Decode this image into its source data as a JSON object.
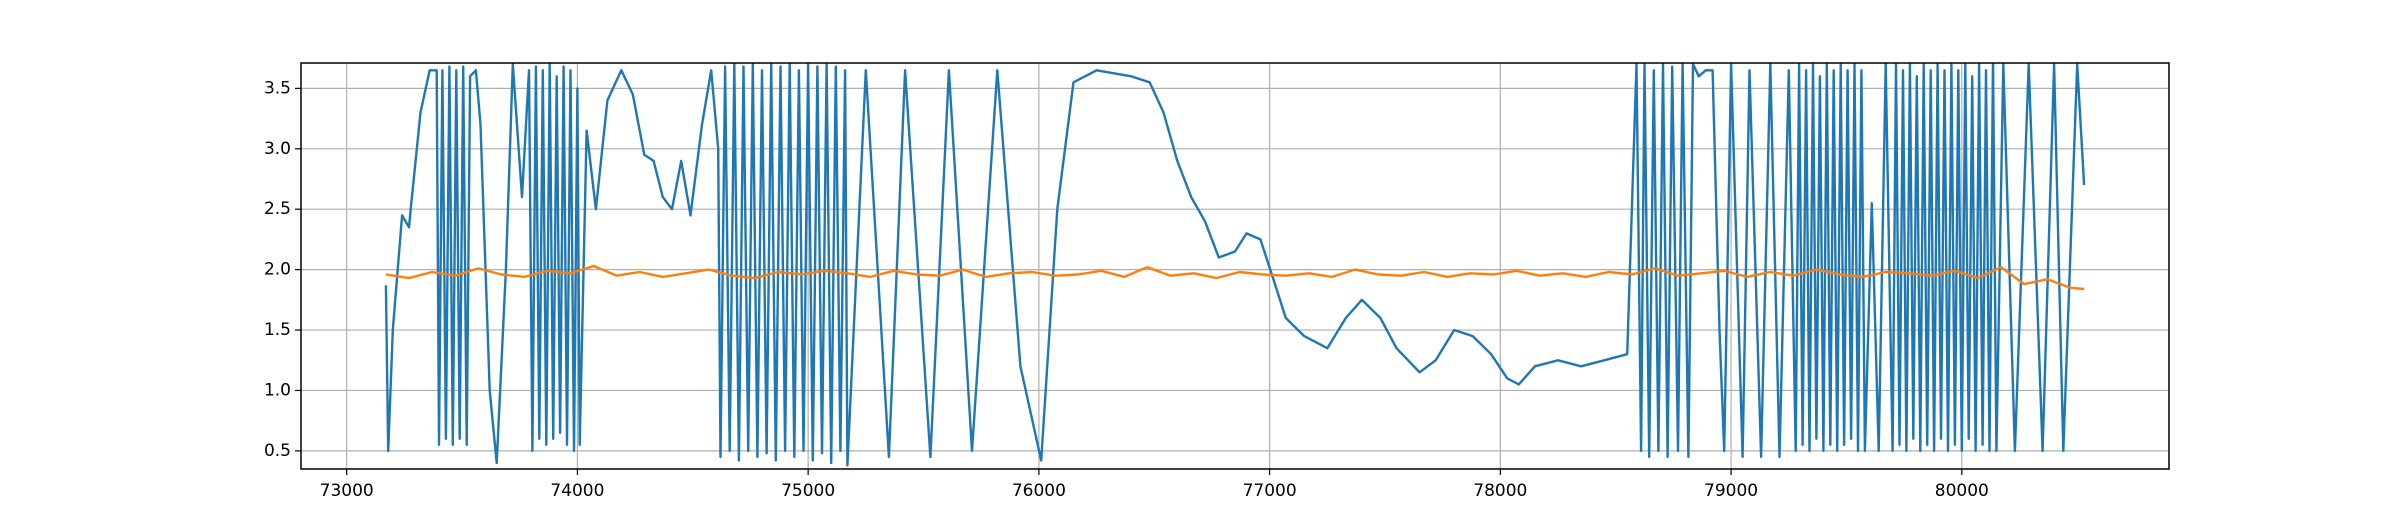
{
  "chart_data": {
    "type": "line",
    "xlim": [
      72802,
      80898
    ],
    "ylim": [
      0.35,
      3.71
    ],
    "xticks": [
      73000,
      74000,
      75000,
      76000,
      77000,
      78000,
      79000,
      80000
    ],
    "yticks": [
      0.5,
      {
        "value": 1.0,
        "label": "1.0"
      },
      1.5,
      {
        "value": 2.0,
        "label": "2.0"
      },
      2.5,
      {
        "value": 3.0,
        "label": "3.0"
      },
      3.5
    ],
    "grid": true,
    "series": [
      {
        "color": "#1f77b4",
        "x": [
          73170,
          73180,
          73200,
          73240,
          73270,
          73280,
          73320,
          73360,
          73390,
          73400,
          73415,
          73430,
          73445,
          73460,
          73475,
          73490,
          73505,
          73520,
          73535,
          73560,
          73580,
          73620,
          73650,
          73690,
          73720,
          73760,
          73790,
          73805,
          73820,
          73835,
          73850,
          73865,
          73880,
          73895,
          73910,
          73925,
          73940,
          73955,
          73970,
          73985,
          74000,
          74010,
          74040,
          74080,
          74130,
          74190,
          74240,
          74290,
          74330,
          74370,
          74410,
          74450,
          74490,
          74540,
          74580,
          74610,
          74620,
          74640,
          74660,
          74680,
          74700,
          74720,
          74740,
          74760,
          74780,
          74800,
          74820,
          74840,
          74860,
          74880,
          74900,
          74920,
          74940,
          74960,
          74980,
          75000,
          75020,
          75040,
          75060,
          75080,
          75100,
          75120,
          75140,
          75160,
          75170,
          75250,
          75350,
          75420,
          75530,
          75610,
          75710,
          75820,
          75920,
          76010,
          76080,
          76150,
          76250,
          76400,
          76480,
          76540,
          76600,
          76660,
          76720,
          76780,
          76850,
          76900,
          76960,
          77020,
          77070,
          77150,
          77250,
          77330,
          77400,
          77480,
          77550,
          77650,
          77720,
          77800,
          77880,
          77960,
          78030,
          78080,
          78150,
          78250,
          78350,
          78450,
          78550,
          78590,
          78610,
          78625,
          78645,
          78665,
          78685,
          78705,
          78725,
          78745,
          78770,
          78790,
          78815,
          78835,
          78860,
          78890,
          78920,
          78950,
          78970,
          79000,
          79050,
          79080,
          79130,
          79170,
          79210,
          79250,
          79280,
          79295,
          79310,
          79325,
          79340,
          79355,
          79370,
          79385,
          79400,
          79415,
          79430,
          79445,
          79460,
          79475,
          79490,
          79505,
          79520,
          79535,
          79550,
          79565,
          79580,
          79610,
          79640,
          79670,
          79700,
          79715,
          79730,
          79745,
          79760,
          79775,
          79790,
          79805,
          79820,
          79835,
          79850,
          79865,
          79880,
          79895,
          79910,
          79925,
          79940,
          79955,
          79970,
          79985,
          80000,
          80015,
          80030,
          80045,
          80060,
          80075,
          80090,
          80105,
          80120,
          80135,
          80150,
          80180,
          80230,
          80290,
          80350,
          80400,
          80440,
          80500,
          80530
        ],
        "values": [
          1.87,
          0.5,
          1.5,
          2.45,
          2.35,
          2.55,
          3.3,
          3.65,
          3.65,
          0.55,
          3.65,
          0.6,
          3.68,
          0.55,
          3.65,
          0.6,
          3.68,
          0.55,
          3.6,
          3.65,
          3.2,
          1.0,
          0.4,
          2.0,
          3.7,
          2.6,
          3.65,
          0.5,
          3.68,
          0.6,
          3.65,
          0.55,
          3.7,
          0.6,
          3.6,
          0.65,
          3.68,
          0.55,
          3.65,
          0.5,
          3.5,
          0.55,
          3.15,
          2.5,
          3.4,
          3.65,
          3.45,
          2.95,
          2.9,
          2.6,
          2.5,
          2.9,
          2.45,
          3.2,
          3.65,
          3.0,
          0.45,
          3.68,
          0.5,
          3.7,
          0.42,
          3.68,
          0.5,
          3.7,
          0.45,
          3.65,
          0.48,
          3.7,
          0.42,
          3.68,
          0.5,
          3.7,
          0.45,
          3.65,
          0.5,
          3.7,
          0.42,
          3.68,
          0.48,
          3.7,
          0.4,
          3.68,
          0.5,
          3.65,
          0.38,
          3.65,
          0.45,
          3.65,
          0.45,
          3.65,
          0.5,
          3.65,
          1.2,
          0.42,
          2.5,
          3.55,
          3.65,
          3.6,
          3.55,
          3.3,
          2.9,
          2.6,
          2.4,
          2.1,
          2.15,
          2.3,
          2.25,
          1.9,
          1.6,
          1.45,
          1.35,
          1.6,
          1.75,
          1.6,
          1.35,
          1.15,
          1.25,
          1.5,
          1.45,
          1.3,
          1.1,
          1.05,
          1.2,
          1.25,
          1.2,
          1.25,
          1.3,
          3.7,
          0.5,
          3.7,
          0.45,
          3.65,
          0.5,
          3.7,
          0.45,
          3.68,
          0.5,
          3.7,
          0.45,
          3.7,
          3.6,
          3.65,
          3.65,
          1.5,
          0.5,
          3.7,
          0.45,
          3.65,
          0.45,
          3.7,
          0.45,
          3.65,
          0.5,
          3.7,
          0.55,
          3.65,
          0.5,
          3.7,
          0.6,
          3.6,
          0.5,
          3.7,
          0.55,
          3.65,
          0.5,
          3.7,
          0.55,
          3.65,
          0.6,
          3.7,
          0.5,
          3.65,
          0.5,
          2.55,
          0.5,
          3.7,
          0.5,
          3.7,
          0.55,
          3.65,
          0.5,
          3.7,
          0.6,
          3.6,
          0.5,
          3.7,
          0.55,
          3.65,
          0.5,
          3.7,
          0.6,
          3.65,
          0.5,
          3.7,
          0.55,
          3.65,
          0.5,
          3.7,
          0.6,
          3.6,
          0.5,
          3.7,
          0.55,
          3.65,
          0.5,
          3.75,
          0.5,
          3.7,
          0.5,
          3.7,
          0.5,
          3.7,
          0.5,
          3.7,
          2.7
        ]
      },
      {
        "color": "#ff7f0e",
        "x": [
          73170,
          73270,
          73370,
          73470,
          73570,
          73670,
          73770,
          73870,
          73970,
          74070,
          74170,
          74270,
          74370,
          74470,
          74570,
          74670,
          74770,
          74870,
          74970,
          75070,
          75170,
          75270,
          75370,
          75470,
          75570,
          75670,
          75770,
          75870,
          75970,
          76070,
          76170,
          76270,
          76370,
          76470,
          76570,
          76670,
          76770,
          76870,
          76970,
          77070,
          77170,
          77270,
          77370,
          77470,
          77570,
          77670,
          77770,
          77870,
          77970,
          78070,
          78170,
          78270,
          78370,
          78470,
          78570,
          78670,
          78770,
          78870,
          78970,
          79070,
          79170,
          79270,
          79370,
          79470,
          79570,
          79670,
          79770,
          79870,
          79970,
          80070,
          80170,
          80270,
          80370,
          80470,
          80530
        ],
        "values": [
          1.96,
          1.93,
          1.98,
          1.95,
          2.01,
          1.96,
          1.94,
          1.99,
          1.97,
          2.03,
          1.95,
          1.98,
          1.94,
          1.97,
          2.0,
          1.95,
          1.93,
          1.98,
          1.96,
          1.99,
          1.97,
          1.94,
          1.99,
          1.96,
          1.95,
          2.0,
          1.94,
          1.97,
          1.98,
          1.95,
          1.96,
          1.99,
          1.94,
          2.02,
          1.95,
          1.97,
          1.93,
          1.98,
          1.96,
          1.95,
          1.97,
          1.94,
          2.0,
          1.96,
          1.95,
          1.98,
          1.94,
          1.97,
          1.96,
          1.99,
          1.95,
          1.97,
          1.94,
          1.98,
          1.96,
          2.01,
          1.95,
          1.97,
          1.99,
          1.94,
          1.98,
          1.95,
          2.0,
          1.96,
          1.94,
          1.98,
          1.97,
          1.95,
          1.99,
          1.93,
          2.02,
          1.88,
          1.92,
          1.85,
          1.84
        ]
      }
    ]
  }
}
